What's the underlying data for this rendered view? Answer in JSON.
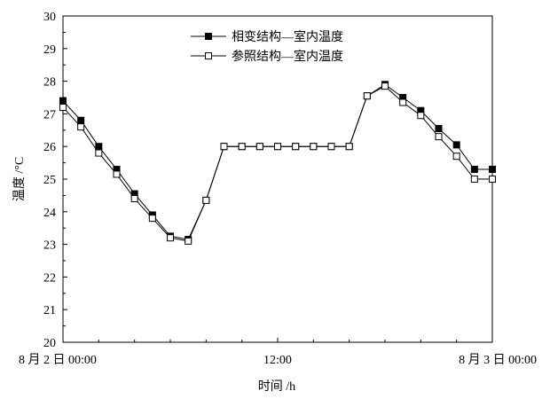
{
  "chart_data": {
    "type": "line",
    "ylabel": "温度 /°C",
    "xlabel": "时间 /h",
    "ylim": [
      20,
      30
    ],
    "yticks": [
      20,
      21,
      22,
      23,
      24,
      25,
      26,
      27,
      28,
      29,
      30
    ],
    "xlim": [
      0,
      24
    ],
    "xticks": [
      {
        "x": 0,
        "label": "8 月 2 日 00:00"
      },
      {
        "x": 12,
        "label": "12:00"
      },
      {
        "x": 24,
        "label": "8 月 3 日 00:00"
      }
    ],
    "grid": false,
    "legend_position": "top-center",
    "series": [
      {
        "name": "相变结构—室内温度",
        "marker": "filled-square",
        "color": "#000000",
        "x": [
          0,
          1,
          2,
          3,
          4,
          5,
          6,
          7,
          8,
          9,
          10,
          11,
          12,
          13,
          14,
          15,
          16,
          17,
          18,
          19,
          20,
          21,
          22,
          23,
          24
        ],
        "y": [
          27.4,
          26.8,
          26.0,
          25.3,
          24.55,
          23.9,
          23.25,
          23.15,
          24.35,
          26.0,
          26.0,
          26.0,
          26.0,
          26.0,
          26.0,
          26.0,
          26.0,
          27.55,
          27.9,
          27.5,
          27.1,
          26.55,
          26.05,
          25.3,
          25.3
        ]
      },
      {
        "name": "参照结构—室内温度",
        "marker": "open-square",
        "color": "#000000",
        "x": [
          0,
          1,
          2,
          3,
          4,
          5,
          6,
          7,
          8,
          9,
          10,
          11,
          12,
          13,
          14,
          15,
          16,
          17,
          18,
          19,
          20,
          21,
          22,
          23,
          24
        ],
        "y": [
          27.2,
          26.6,
          25.8,
          25.15,
          24.4,
          23.8,
          23.2,
          23.1,
          24.35,
          26.0,
          26.0,
          26.0,
          26.0,
          26.0,
          26.0,
          26.0,
          26.0,
          27.55,
          27.85,
          27.35,
          26.95,
          26.3,
          25.7,
          25.0,
          25.0
        ]
      }
    ]
  }
}
